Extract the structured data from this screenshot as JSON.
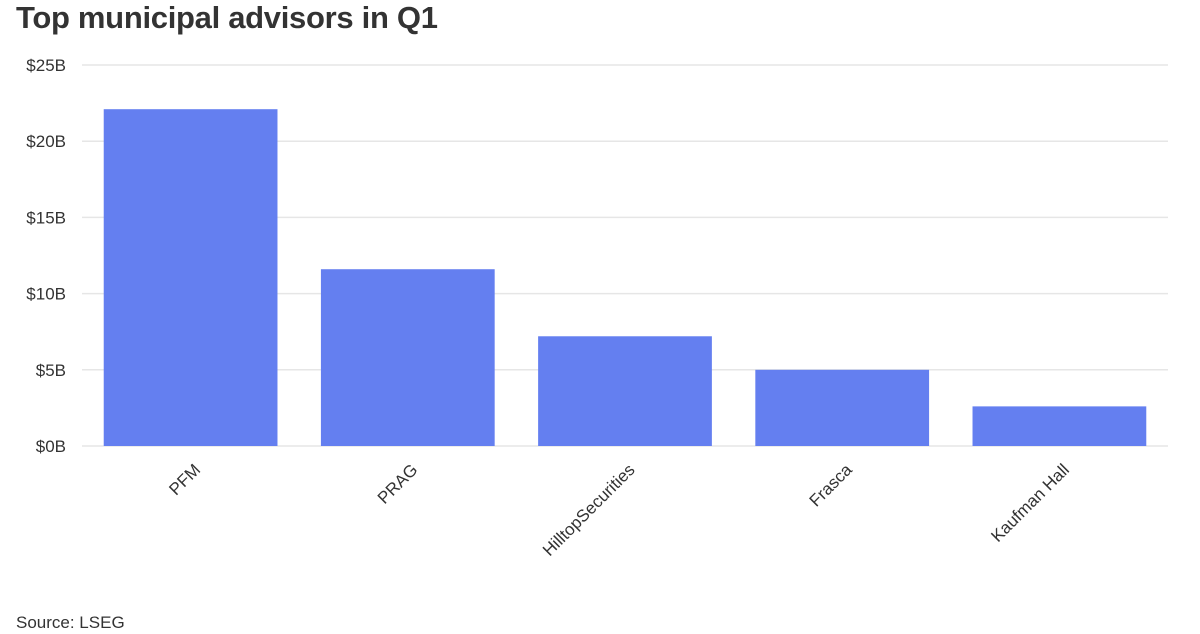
{
  "chart_data": {
    "type": "bar",
    "title": "Top municipal advisors in Q1",
    "categories": [
      "PFM",
      "PRAG",
      "HilltopSecurities",
      "Frasca",
      "Kaufman Hall"
    ],
    "values": [
      22.1,
      11.6,
      7.2,
      5.0,
      2.6
    ],
    "value_unit": "billions of US dollars",
    "yticks": [
      0,
      5,
      10,
      15,
      20,
      25
    ],
    "ytick_labels": [
      "$0B",
      "$5B",
      "$10B",
      "$15B",
      "$20B",
      "$25B"
    ],
    "ylim": [
      0,
      25
    ],
    "xlabel": "",
    "ylabel": "",
    "grid": true,
    "bar_color": "#647ff0",
    "gridline_color": "#e6e6e6",
    "source": "Source: LSEG"
  }
}
